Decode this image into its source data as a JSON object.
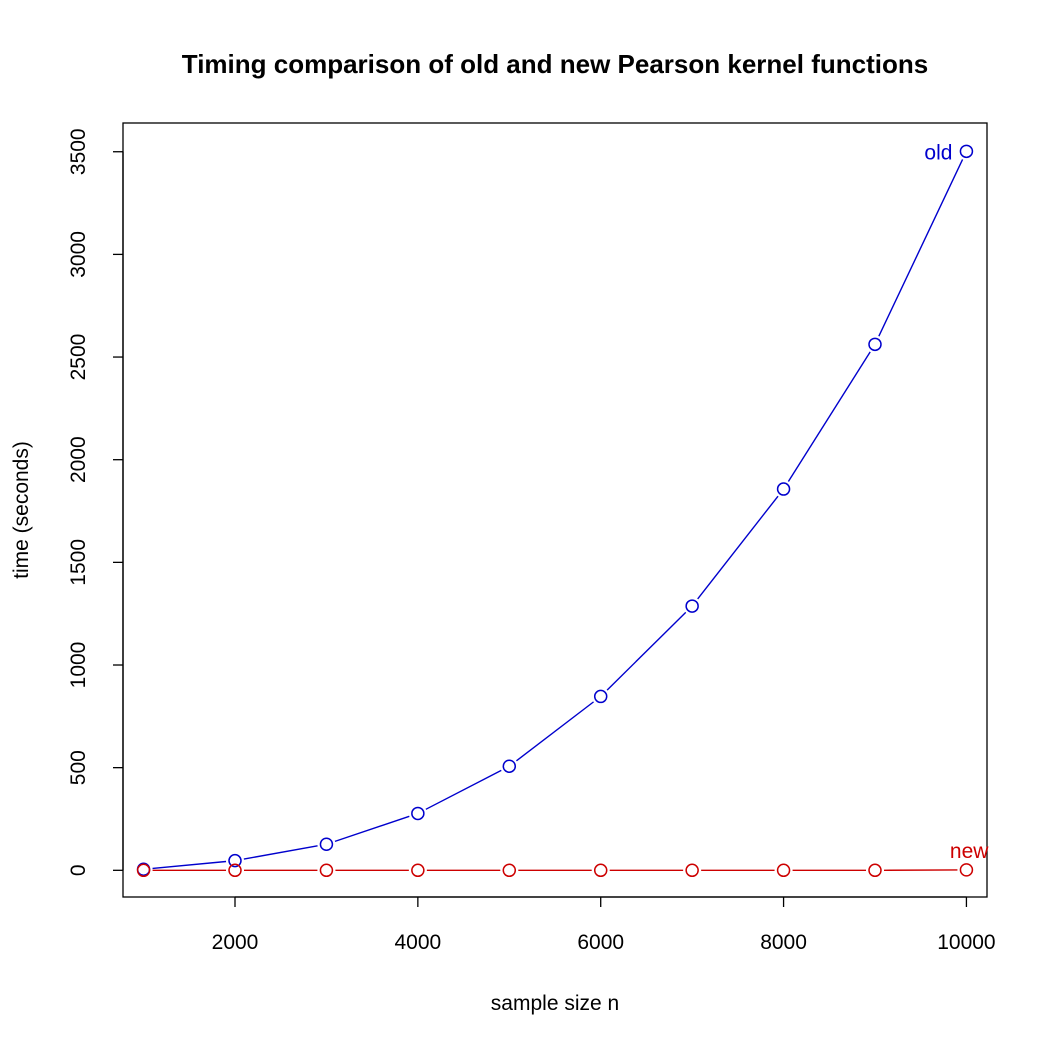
{
  "chart_data": {
    "type": "line",
    "title": "Timing comparison of old and new Pearson kernel functions",
    "xlabel": "sample size n",
    "ylabel": "time (seconds)",
    "xlim": [
      775,
      10225
    ],
    "ylim": [
      -130,
      3640
    ],
    "x_ticks": [
      2000,
      4000,
      6000,
      8000,
      10000
    ],
    "y_ticks": [
      0,
      500,
      1000,
      1500,
      2000,
      2500,
      3000,
      3500
    ],
    "grid": false,
    "legend": "none",
    "x": [
      1000,
      2000,
      3000,
      4000,
      5000,
      6000,
      7000,
      8000,
      9000,
      10000
    ],
    "series": [
      {
        "name": "old",
        "color": "#0000cd",
        "marker": "open-circle",
        "values": [
          5,
          47,
          127,
          277,
          507,
          847,
          1287,
          1857,
          2562,
          3502
        ]
      },
      {
        "name": "new",
        "color": "#cd0000",
        "marker": "open-circle",
        "values": [
          0,
          0,
          0,
          0,
          0,
          0,
          0,
          0,
          0,
          2
        ]
      }
    ]
  }
}
